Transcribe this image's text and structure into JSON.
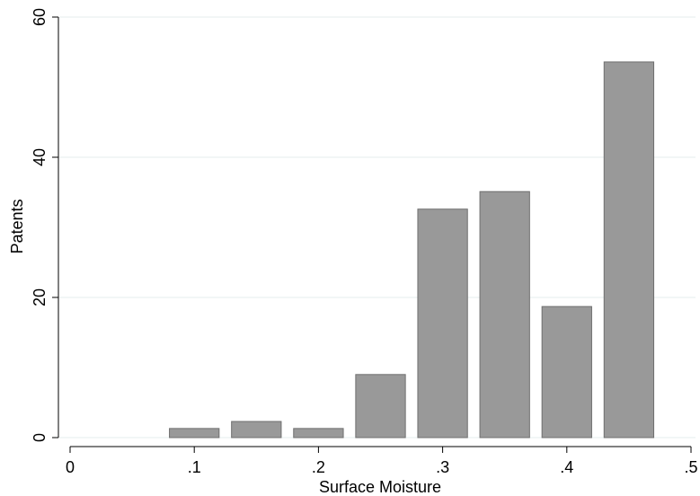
{
  "chart_data": {
    "type": "bar",
    "xlabel": "Surface Moisture",
    "ylabel": "Patents",
    "xlim": [
      0,
      0.5
    ],
    "ylim": [
      0,
      60
    ],
    "x_ticks": [
      {
        "value": 0,
        "label": "0"
      },
      {
        "value": 0.1,
        "label": ".1"
      },
      {
        "value": 0.2,
        "label": ".2"
      },
      {
        "value": 0.3,
        "label": ".3"
      },
      {
        "value": 0.4,
        "label": ".4"
      },
      {
        "value": 0.5,
        "label": ".5"
      }
    ],
    "y_ticks": [
      {
        "value": 0,
        "label": "0"
      },
      {
        "value": 20,
        "label": "20"
      },
      {
        "value": 40,
        "label": "40"
      },
      {
        "value": 60,
        "label": "60"
      }
    ],
    "grid": true,
    "bar_color": "#999999",
    "bar_edge_color": "#6f6f6f",
    "grid_color": "#e6ecee",
    "bars": [
      {
        "x_start": 0.08,
        "x_end": 0.12,
        "value": 1.3
      },
      {
        "x_start": 0.13,
        "x_end": 0.17,
        "value": 2.3
      },
      {
        "x_start": 0.18,
        "x_end": 0.22,
        "value": 1.3
      },
      {
        "x_start": 0.23,
        "x_end": 0.27,
        "value": 9.0
      },
      {
        "x_start": 0.28,
        "x_end": 0.32,
        "value": 32.6
      },
      {
        "x_start": 0.33,
        "x_end": 0.37,
        "value": 35.1
      },
      {
        "x_start": 0.38,
        "x_end": 0.42,
        "value": 18.7
      },
      {
        "x_start": 0.43,
        "x_end": 0.47,
        "value": 53.6
      }
    ]
  }
}
